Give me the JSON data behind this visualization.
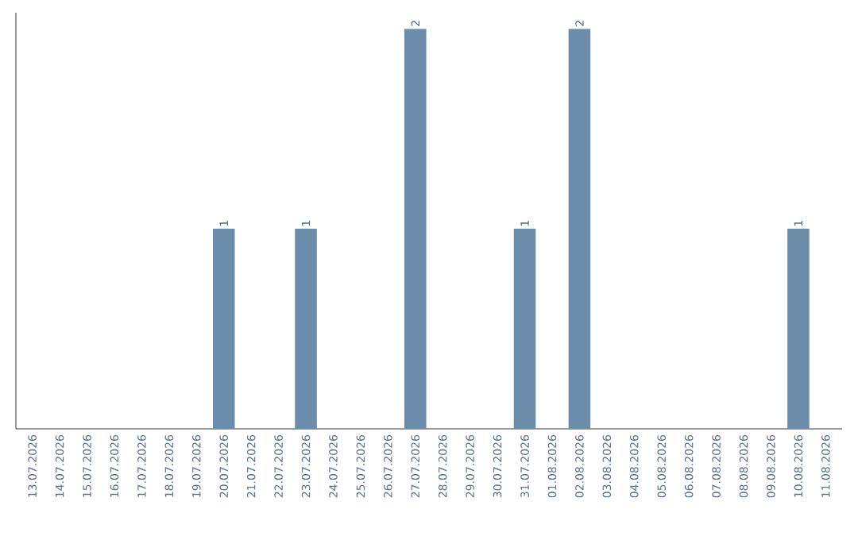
{
  "chart_data": {
    "type": "bar",
    "categories": [
      "13.07.2026",
      "14.07.2026",
      "15.07.2026",
      "16.07.2026",
      "17.07.2026",
      "18.07.2026",
      "19.07.2026",
      "20.07.2026",
      "21.07.2026",
      "22.07.2026",
      "23.07.2026",
      "24.07.2026",
      "25.07.2026",
      "26.07.2026",
      "27.07.2026",
      "28.07.2026",
      "29.07.2026",
      "30.07.2026",
      "31.07.2026",
      "01.08.2026",
      "02.08.2026",
      "03.08.2026",
      "04.08.2026",
      "05.08.2026",
      "06.08.2026",
      "07.08.2026",
      "08.08.2026",
      "09.08.2026",
      "10.08.2026",
      "11.08.2026"
    ],
    "values": [
      0,
      0,
      0,
      0,
      0,
      0,
      0,
      1,
      0,
      0,
      1,
      0,
      0,
      0,
      2,
      0,
      0,
      0,
      1,
      0,
      2,
      0,
      0,
      0,
      0,
      0,
      0,
      0,
      1,
      0
    ],
    "value_labels": [
      null,
      null,
      null,
      null,
      null,
      null,
      null,
      "1",
      null,
      null,
      "1",
      null,
      null,
      null,
      "2",
      null,
      null,
      null,
      "1",
      null,
      "2",
      null,
      null,
      null,
      null,
      null,
      null,
      null,
      "1",
      null
    ],
    "color": "#6b8cab",
    "tick_labels": "x"
  }
}
